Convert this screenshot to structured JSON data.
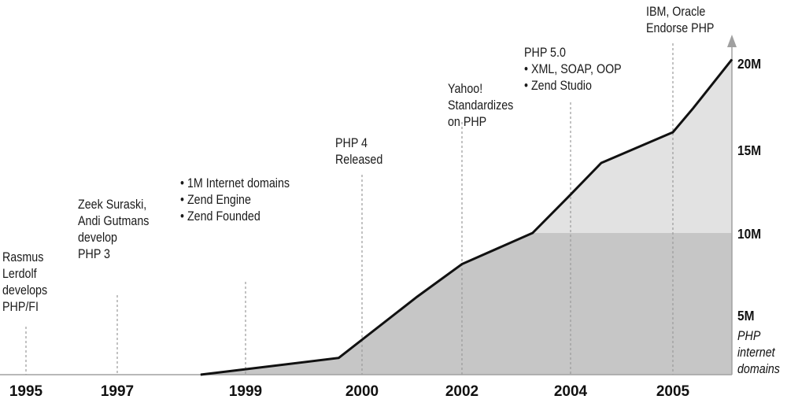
{
  "chart_data": {
    "type": "area",
    "title": "",
    "xlabel": "",
    "ylabel": "PHP internet domains",
    "ylabel_lines": [
      "PHP",
      "internet",
      "domains"
    ],
    "x_tick_labels": [
      "1995",
      "1997",
      "1999",
      "2000",
      "2002",
      "2004",
      "2005"
    ],
    "y_tick_labels": [
      "5M",
      "10M",
      "15M",
      "20M"
    ],
    "y_ticks": [
      5,
      10,
      15,
      20
    ],
    "y_unit": "millions",
    "ylim": [
      0,
      20
    ],
    "grid": false,
    "colors": {
      "line": "#111111",
      "fill_lower": "#c6c6c6",
      "fill_upper": "#e2e2e2",
      "axis": "#a0a0a0",
      "annotation_line": "#9a9a9a"
    },
    "fill_split_value": 10,
    "series": [
      {
        "x": [
          1998.3,
          1999.8,
          2001.1,
          2002.0,
          2003.3,
          2004.0,
          2004.3,
          2005.0,
          2005.2,
          2005.6
        ],
        "y": [
          0,
          1.4,
          6.1,
          8.1,
          10.0,
          12.3,
          14.2,
          16.0,
          17.4,
          20.2
        ]
      }
    ],
    "annotations": [
      {
        "year": "1995",
        "lines": [
          "Rasmus",
          "Lerdolf",
          "develops",
          "PHP/FI"
        ]
      },
      {
        "year": "1997",
        "lines": [
          "Zeek Suraski,",
          "Andi Gutmans",
          "develop",
          "PHP 3"
        ]
      },
      {
        "year": "1999",
        "lines": [
          "• 1M Internet domains",
          "• Zend Engine",
          "• Zend Founded"
        ]
      },
      {
        "year": "2000",
        "lines": [
          "PHP 4",
          "Released"
        ]
      },
      {
        "year": "2002",
        "lines": [
          "Yahoo!",
          "Standardizes",
          "on PHP"
        ]
      },
      {
        "year": "2004",
        "lines": [
          "PHP 5.0",
          "• XML, SOAP, OOP",
          "• Zend Studio"
        ]
      },
      {
        "year": "2005",
        "lines": [
          "IBM, Oracle",
          "Endorse PHP"
        ]
      }
    ]
  }
}
